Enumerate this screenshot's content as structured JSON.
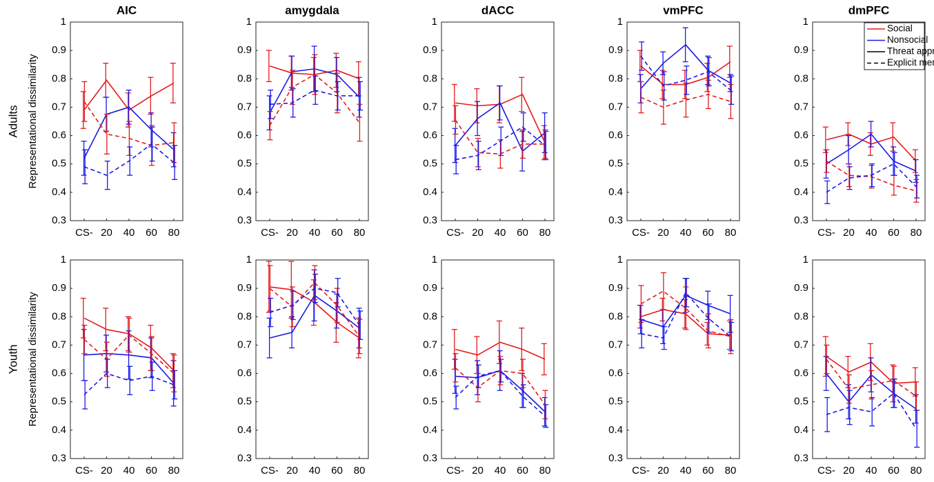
{
  "chart_data": [
    {
      "type": "line",
      "title": "AIC",
      "row_label": "Adults",
      "ylabel": "Representational dissimilarity",
      "categories": [
        "CS-",
        "20",
        "40",
        "60",
        "80"
      ],
      "ylim": [
        0.3,
        1
      ],
      "yticks": [
        0.3,
        0.4,
        0.5,
        0.6,
        0.7,
        0.8,
        0.9,
        1
      ],
      "series": [
        {
          "color": "#e31a1c",
          "dash": false,
          "values": [
            0.69,
            0.795,
            0.69,
            0.74,
            0.785
          ],
          "errors": [
            0.065,
            0.06,
            0.06,
            0.065,
            0.07
          ]
        },
        {
          "color": "#1a1ae6",
          "dash": false,
          "values": [
            0.52,
            0.675,
            0.7,
            0.62,
            0.55
          ],
          "errors": [
            0.06,
            0.06,
            0.06,
            0.06,
            0.06
          ]
        },
        {
          "color": "#e31a1c",
          "dash": true,
          "values": [
            0.72,
            0.605,
            0.59,
            0.565,
            0.575
          ],
          "errors": [
            0.07,
            0.07,
            0.06,
            0.07,
            0.07
          ]
        },
        {
          "color": "#1a1ae6",
          "dash": true,
          "values": [
            0.49,
            0.46,
            0.51,
            0.57,
            0.505
          ],
          "errors": [
            0.06,
            0.05,
            0.05,
            0.06,
            0.06
          ]
        }
      ]
    },
    {
      "type": "line",
      "title": "amygdala",
      "categories": [
        "CS-",
        "20",
        "40",
        "60",
        "80"
      ],
      "ylim": [
        0.3,
        1
      ],
      "yticks": [
        0.3,
        0.4,
        0.5,
        0.6,
        0.7,
        0.8,
        0.9,
        1
      ],
      "series": [
        {
          "color": "#e31a1c",
          "dash": false,
          "values": [
            0.845,
            0.82,
            0.815,
            0.83,
            0.8
          ],
          "errors": [
            0.055,
            0.06,
            0.06,
            0.06,
            0.06
          ]
        },
        {
          "color": "#1a1ae6",
          "dash": false,
          "values": [
            0.68,
            0.825,
            0.835,
            0.815,
            0.735
          ],
          "errors": [
            0.06,
            0.055,
            0.08,
            0.06,
            0.07
          ]
        },
        {
          "color": "#e31a1c",
          "dash": true,
          "values": [
            0.635,
            0.77,
            0.815,
            0.75,
            0.645
          ],
          "errors": [
            0.05,
            0.06,
            0.07,
            0.07,
            0.065
          ]
        },
        {
          "color": "#1a1ae6",
          "dash": true,
          "values": [
            0.71,
            0.715,
            0.76,
            0.74,
            0.74
          ],
          "errors": [
            0.05,
            0.05,
            0.05,
            0.05,
            0.05
          ]
        }
      ]
    },
    {
      "type": "line",
      "title": "dACC",
      "categories": [
        "CS-",
        "20",
        "40",
        "60",
        "80"
      ],
      "ylim": [
        0.3,
        1
      ],
      "yticks": [
        0.3,
        0.4,
        0.5,
        0.6,
        0.7,
        0.8,
        0.9,
        1
      ],
      "series": [
        {
          "color": "#e31a1c",
          "dash": false,
          "values": [
            0.715,
            0.705,
            0.71,
            0.745,
            0.575
          ],
          "errors": [
            0.065,
            0.06,
            0.065,
            0.06,
            0.06
          ]
        },
        {
          "color": "#1a1ae6",
          "dash": false,
          "values": [
            0.565,
            0.66,
            0.715,
            0.545,
            0.61
          ],
          "errors": [
            0.06,
            0.06,
            0.06,
            0.07,
            0.07
          ]
        },
        {
          "color": "#e31a1c",
          "dash": true,
          "values": [
            0.655,
            0.54,
            0.535,
            0.57,
            0.57
          ],
          "errors": [
            0.05,
            0.05,
            0.05,
            0.05,
            0.05
          ]
        },
        {
          "color": "#1a1ae6",
          "dash": true,
          "values": [
            0.515,
            0.53,
            0.58,
            0.63,
            0.565
          ],
          "errors": [
            0.05,
            0.05,
            0.05,
            0.05,
            0.05
          ]
        }
      ]
    },
    {
      "type": "line",
      "title": "vmPFC",
      "categories": [
        "CS-",
        "20",
        "40",
        "60",
        "80"
      ],
      "ylim": [
        0.3,
        1
      ],
      "yticks": [
        0.3,
        0.4,
        0.5,
        0.6,
        0.7,
        0.8,
        0.9,
        1
      ],
      "series": [
        {
          "color": "#e31a1c",
          "dash": false,
          "values": [
            0.845,
            0.78,
            0.78,
            0.805,
            0.86
          ],
          "errors": [
            0.055,
            0.05,
            0.05,
            0.05,
            0.055
          ]
        },
        {
          "color": "#1a1ae6",
          "dash": false,
          "values": [
            0.765,
            0.855,
            0.92,
            0.83,
            0.785
          ],
          "errors": [
            0.05,
            0.04,
            0.06,
            0.05,
            0.03
          ]
        },
        {
          "color": "#e31a1c",
          "dash": true,
          "values": [
            0.735,
            0.7,
            0.725,
            0.745,
            0.72
          ],
          "errors": [
            0.055,
            0.06,
            0.06,
            0.05,
            0.06
          ]
        },
        {
          "color": "#1a1ae6",
          "dash": true,
          "values": [
            0.88,
            0.775,
            0.795,
            0.825,
            0.76
          ],
          "errors": [
            0.05,
            0.05,
            0.05,
            0.05,
            0.05
          ]
        }
      ]
    },
    {
      "type": "line",
      "title": "dmPFC",
      "categories": [
        "CS-",
        "20",
        "40",
        "60",
        "80"
      ],
      "ylim": [
        0.3,
        1
      ],
      "yticks": [
        0.3,
        0.4,
        0.5,
        0.6,
        0.7,
        0.8,
        0.9,
        1
      ],
      "legend": {
        "corner": "upper-right",
        "entries": [
          {
            "label": "Social",
            "color": "#e31a1c",
            "dash": false
          },
          {
            "label": "Nonsocial",
            "color": "#1a1ae6",
            "dash": false
          },
          {
            "label": "Threat appraisal",
            "color": "#000000",
            "dash": false
          },
          {
            "label": "Explicit memory",
            "color": "#000000",
            "dash": true
          }
        ]
      },
      "series": [
        {
          "color": "#e31a1c",
          "dash": false,
          "values": [
            0.585,
            0.605,
            0.57,
            0.595,
            0.51
          ],
          "errors": [
            0.045,
            0.04,
            0.04,
            0.05,
            0.04
          ]
        },
        {
          "color": "#1a1ae6",
          "dash": false,
          "values": [
            0.5,
            0.55,
            0.605,
            0.51,
            0.475
          ],
          "errors": [
            0.05,
            0.05,
            0.045,
            0.05,
            0.04
          ]
        },
        {
          "color": "#e31a1c",
          "dash": true,
          "values": [
            0.51,
            0.46,
            0.455,
            0.425,
            0.405
          ],
          "errors": [
            0.04,
            0.04,
            0.04,
            0.035,
            0.04
          ]
        },
        {
          "color": "#1a1ae6",
          "dash": true,
          "values": [
            0.4,
            0.45,
            0.46,
            0.5,
            0.42
          ],
          "errors": [
            0.04,
            0.04,
            0.04,
            0.04,
            0.04
          ]
        }
      ]
    },
    {
      "type": "line",
      "title": null,
      "row_label": "Youth",
      "ylabel": "Representational dissimilarity",
      "categories": [
        "CS-",
        "20",
        "40",
        "60",
        "80"
      ],
      "ylim": [
        0.3,
        1
      ],
      "yticks": [
        0.3,
        0.4,
        0.5,
        0.6,
        0.7,
        0.8,
        0.9,
        1
      ],
      "series": [
        {
          "color": "#e31a1c",
          "dash": false,
          "values": [
            0.795,
            0.755,
            0.74,
            0.69,
            0.61
          ],
          "errors": [
            0.07,
            0.075,
            0.06,
            0.08,
            0.06
          ]
        },
        {
          "color": "#1a1ae6",
          "dash": false,
          "values": [
            0.665,
            0.67,
            0.665,
            0.655,
            0.565
          ],
          "errors": [
            0.09,
            0.065,
            0.085,
            0.07,
            0.08
          ]
        },
        {
          "color": "#e31a1c",
          "dash": true,
          "values": [
            0.72,
            0.65,
            0.735,
            0.67,
            0.6
          ],
          "errors": [
            0.05,
            0.06,
            0.06,
            0.06,
            0.065
          ]
        },
        {
          "color": "#1a1ae6",
          "dash": true,
          "values": [
            0.525,
            0.6,
            0.575,
            0.59,
            0.56
          ],
          "errors": [
            0.05,
            0.05,
            0.05,
            0.05,
            0.05
          ]
        }
      ]
    },
    {
      "type": "line",
      "title": null,
      "categories": [
        "CS-",
        "20",
        "40",
        "60",
        "80"
      ],
      "ylim": [
        0.3,
        1
      ],
      "yticks": [
        0.3,
        0.4,
        0.5,
        0.6,
        0.7,
        0.8,
        0.9,
        1
      ],
      "series": [
        {
          "color": "#e31a1c",
          "dash": false,
          "values": [
            0.905,
            0.895,
            0.85,
            0.78,
            0.725
          ],
          "errors": [
            0.09,
            0.1,
            0.08,
            0.07,
            0.07
          ]
        },
        {
          "color": "#1a1ae6",
          "dash": false,
          "values": [
            0.725,
            0.745,
            0.875,
            0.82,
            0.76
          ],
          "errors": [
            0.07,
            0.055,
            0.09,
            0.06,
            0.07
          ]
        },
        {
          "color": "#e31a1c",
          "dash": true,
          "values": [
            0.9,
            0.835,
            0.92,
            0.84,
            0.73
          ],
          "errors": [
            0.08,
            0.07,
            0.06,
            0.06,
            0.06
          ]
        },
        {
          "color": "#1a1ae6",
          "dash": true,
          "values": [
            0.815,
            0.84,
            0.9,
            0.885,
            0.77
          ],
          "errors": [
            0.05,
            0.05,
            0.05,
            0.05,
            0.05
          ]
        }
      ]
    },
    {
      "type": "line",
      "title": null,
      "categories": [
        "CS-",
        "20",
        "40",
        "60",
        "80"
      ],
      "ylim": [
        0.3,
        1
      ],
      "yticks": [
        0.3,
        0.4,
        0.5,
        0.6,
        0.7,
        0.8,
        0.9,
        1
      ],
      "series": [
        {
          "color": "#e31a1c",
          "dash": false,
          "values": [
            0.685,
            0.665,
            0.71,
            0.685,
            0.65
          ],
          "errors": [
            0.07,
            0.065,
            0.075,
            0.075,
            0.055
          ]
        },
        {
          "color": "#1a1ae6",
          "dash": false,
          "values": [
            0.59,
            0.585,
            0.61,
            0.54,
            0.465
          ],
          "errors": [
            0.06,
            0.06,
            0.07,
            0.06,
            0.05
          ]
        },
        {
          "color": "#e31a1c",
          "dash": true,
          "values": [
            0.62,
            0.55,
            0.61,
            0.6,
            0.49
          ],
          "errors": [
            0.05,
            0.05,
            0.05,
            0.05,
            0.05
          ]
        },
        {
          "color": "#1a1ae6",
          "dash": true,
          "values": [
            0.515,
            0.59,
            0.61,
            0.52,
            0.45
          ],
          "errors": [
            0.04,
            0.04,
            0.04,
            0.04,
            0.04
          ]
        }
      ]
    },
    {
      "type": "line",
      "title": null,
      "categories": [
        "CS-",
        "20",
        "40",
        "60",
        "80"
      ],
      "ylim": [
        0.3,
        1
      ],
      "yticks": [
        0.3,
        0.4,
        0.5,
        0.6,
        0.7,
        0.8,
        0.9,
        1
      ],
      "series": [
        {
          "color": "#e31a1c",
          "dash": false,
          "values": [
            0.8,
            0.825,
            0.81,
            0.74,
            0.735
          ],
          "errors": [
            0.04,
            0.04,
            0.05,
            0.04,
            0.05
          ]
        },
        {
          "color": "#1a1ae6",
          "dash": false,
          "values": [
            0.79,
            0.765,
            0.875,
            0.84,
            0.81
          ],
          "errors": [
            0.05,
            0.06,
            0.06,
            0.05,
            0.065
          ]
        },
        {
          "color": "#e31a1c",
          "dash": true,
          "values": [
            0.845,
            0.89,
            0.83,
            0.75,
            0.73
          ],
          "errors": [
            0.065,
            0.065,
            0.075,
            0.06,
            0.06
          ]
        },
        {
          "color": "#1a1ae6",
          "dash": true,
          "values": [
            0.74,
            0.725,
            0.885,
            0.795,
            0.73
          ],
          "errors": [
            0.05,
            0.04,
            0.05,
            0.05,
            0.05
          ]
        }
      ]
    },
    {
      "type": "line",
      "title": null,
      "categories": [
        "CS-",
        "20",
        "40",
        "60",
        "80"
      ],
      "ylim": [
        0.3,
        1
      ],
      "yticks": [
        0.3,
        0.4,
        0.5,
        0.6,
        0.7,
        0.8,
        0.9,
        1
      ],
      "series": [
        {
          "color": "#e31a1c",
          "dash": false,
          "values": [
            0.66,
            0.605,
            0.64,
            0.565,
            0.57
          ],
          "errors": [
            0.07,
            0.055,
            0.065,
            0.065,
            0.05
          ]
        },
        {
          "color": "#1a1ae6",
          "dash": false,
          "values": [
            0.6,
            0.5,
            0.595,
            0.53,
            0.475
          ],
          "errors": [
            0.06,
            0.06,
            0.06,
            0.05,
            0.05
          ]
        },
        {
          "color": "#e31a1c",
          "dash": true,
          "values": [
            0.65,
            0.545,
            0.56,
            0.575,
            0.52
          ],
          "errors": [
            0.05,
            0.05,
            0.05,
            0.05,
            0.05
          ]
        },
        {
          "color": "#1a1ae6",
          "dash": true,
          "values": [
            0.455,
            0.48,
            0.465,
            0.53,
            0.405
          ],
          "errors": [
            0.06,
            0.06,
            0.05,
            0.05,
            0.065
          ]
        }
      ]
    }
  ]
}
